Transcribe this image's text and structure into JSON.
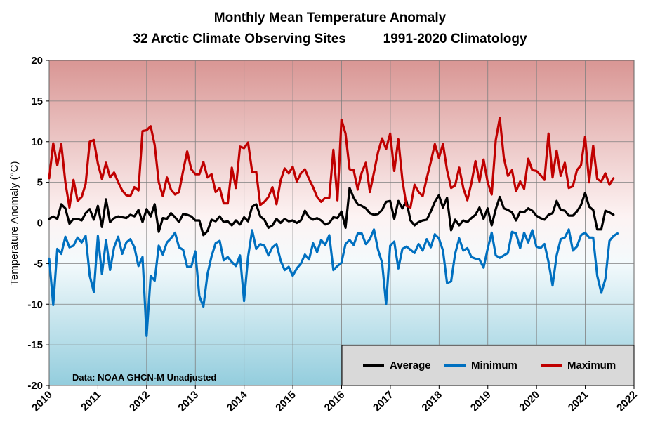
{
  "chart_data": {
    "type": "line",
    "title": "Monthly Mean Temperature Anomaly",
    "subtitle_left": "32 Arctic Climate Observing Sites",
    "subtitle_right": "1991-2020 Climatology",
    "ylabel": "Temperature Anomaly (°C)",
    "xlabel": "",
    "xlim": [
      2010,
      2022
    ],
    "ylim": [
      -20,
      20
    ],
    "x_ticks": [
      "2010",
      "2011",
      "2012",
      "2013",
      "2014",
      "2015",
      "2016",
      "2017",
      "2018",
      "2019",
      "2020",
      "2021",
      "2022"
    ],
    "y_ticks": [
      "20",
      "15",
      "10",
      "5",
      "0",
      "-5",
      "-10",
      "-15",
      "-20"
    ],
    "grid": true,
    "legend_position": "bottom-right",
    "annotation": "Data: NOAA GHCN-M Unadjusted",
    "x_start": 2010.0,
    "x_step": 0.0833,
    "series": [
      {
        "name": "Average",
        "color": "#000000",
        "values": [
          0.5,
          0.8,
          0.5,
          2.3,
          1.8,
          -0.1,
          0.5,
          0.5,
          0.3,
          1.2,
          1.7,
          0.4,
          2.1,
          -0.5,
          2.9,
          0.1,
          0.6,
          0.8,
          0.7,
          0.6,
          1.0,
          0.8,
          1.6,
          0.1,
          1.7,
          0.8,
          2.3,
          -1.1,
          0.6,
          0.5,
          1.2,
          0.7,
          0.1,
          1.1,
          1.0,
          0.8,
          0.3,
          0.3,
          -1.5,
          -1.0,
          0.4,
          0.2,
          0.8,
          0.1,
          0.2,
          -0.3,
          0.3,
          -0.2,
          0.7,
          0.2,
          2.0,
          2.3,
          0.8,
          0.4,
          -0.6,
          -0.3,
          0.5,
          0.0,
          0.5,
          0.2,
          0.3,
          0.0,
          0.3,
          1.5,
          0.7,
          0.4,
          0.6,
          0.3,
          -0.2,
          0.0,
          0.7,
          0.6,
          1.4,
          -0.6,
          4.3,
          3.1,
          2.3,
          2.1,
          1.8,
          1.2,
          1.0,
          1.1,
          1.6,
          2.6,
          2.7,
          0.5,
          2.7,
          1.8,
          2.7,
          0.3,
          -0.3,
          0.1,
          0.3,
          0.4,
          1.4,
          2.6,
          3.4,
          1.9,
          3.1,
          -0.9,
          0.4,
          -0.3,
          0.3,
          0.1,
          0.6,
          1.0,
          1.9,
          0.5,
          1.8,
          -0.3,
          1.7,
          3.2,
          1.8,
          1.6,
          1.3,
          0.3,
          1.4,
          1.3,
          1.8,
          1.5,
          0.9,
          0.6,
          0.4,
          1.0,
          1.2,
          2.7,
          1.6,
          1.5,
          0.9,
          0.9,
          1.4,
          2.2,
          3.7,
          2.0,
          1.6,
          -0.8,
          -0.8,
          1.5,
          1.3,
          1.0
        ]
      },
      {
        "name": "Minimum",
        "color": "#0070C0",
        "values": [
          -4.4,
          -10.1,
          -3.2,
          -3.8,
          -1.7,
          -3.0,
          -2.8,
          -1.8,
          -2.4,
          -1.6,
          -6.5,
          -8.5,
          -1.6,
          -6.3,
          -2.1,
          -5.8,
          -3.0,
          -1.7,
          -3.8,
          -2.4,
          -2.0,
          -3.0,
          -5.3,
          -4.2,
          -13.9,
          -6.5,
          -7.1,
          -2.8,
          -3.9,
          -2.4,
          -1.9,
          -1.2,
          -3.0,
          -3.3,
          -5.4,
          -5.4,
          -3.5,
          -9.0,
          -10.3,
          -6.3,
          -4.1,
          -2.5,
          -2.2,
          -4.6,
          -4.2,
          -4.8,
          -5.3,
          -4.0,
          -9.6,
          -4.2,
          -0.9,
          -3.2,
          -2.6,
          -2.8,
          -4.0,
          -3.0,
          -2.6,
          -4.6,
          -5.8,
          -5.4,
          -6.5,
          -5.6,
          -5.0,
          -3.9,
          -4.5,
          -2.5,
          -3.6,
          -2.1,
          -2.7,
          -1.5,
          -5.8,
          -5.3,
          -4.9,
          -2.6,
          -2.1,
          -2.7,
          -1.3,
          -1.3,
          -2.6,
          -2.0,
          -0.8,
          -3.3,
          -4.9,
          -10.0,
          -2.8,
          -2.3,
          -5.6,
          -3.2,
          -2.9,
          -3.3,
          -3.7,
          -2.6,
          -3.4,
          -2.0,
          -3.0,
          -1.4,
          -1.9,
          -3.4,
          -7.4,
          -7.2,
          -3.8,
          -1.9,
          -3.4,
          -3.1,
          -4.2,
          -4.4,
          -4.5,
          -5.5,
          -3.2,
          -1.2,
          -4.0,
          -4.3,
          -4.0,
          -3.7,
          -1.1,
          -1.3,
          -3.1,
          -1.2,
          -2.4,
          -0.9,
          -2.9,
          -3.1,
          -2.6,
          -4.8,
          -7.7,
          -4.0,
          -2.0,
          -1.8,
          -0.8,
          -3.4,
          -2.9,
          -1.5,
          -1.2,
          -1.8,
          -1.8,
          -6.5,
          -8.6,
          -6.9,
          -2.2,
          -1.6,
          -1.3
        ]
      },
      {
        "name": "Maximum",
        "color": "#C00000",
        "values": [
          5.5,
          9.8,
          7.1,
          9.7,
          5.0,
          1.9,
          5.3,
          2.7,
          3.2,
          4.8,
          10.0,
          10.2,
          7.3,
          5.4,
          7.4,
          5.6,
          6.2,
          5.0,
          4.0,
          3.4,
          3.3,
          4.4,
          4.0,
          11.3,
          11.4,
          11.9,
          9.6,
          5.0,
          3.3,
          5.6,
          4.1,
          3.5,
          3.8,
          6.4,
          8.8,
          6.6,
          6.0,
          6.0,
          7.5,
          5.6,
          6.0,
          3.8,
          4.3,
          2.4,
          2.4,
          6.8,
          4.3,
          9.4,
          9.2,
          9.9,
          6.3,
          6.3,
          2.2,
          2.6,
          3.2,
          4.4,
          2.3,
          5.2,
          6.7,
          6.1,
          6.9,
          5.1,
          6.1,
          6.6,
          5.4,
          4.4,
          3.2,
          2.6,
          3.1,
          3.1,
          9.0,
          2.8,
          12.7,
          11.0,
          6.6,
          6.5,
          4.1,
          6.2,
          7.4,
          3.8,
          6.2,
          8.7,
          10.4,
          9.1,
          11.0,
          6.4,
          10.3,
          5.3,
          2.1,
          1.9,
          4.7,
          3.8,
          3.3,
          5.5,
          7.5,
          9.7,
          8.0,
          9.7,
          6.5,
          4.3,
          4.6,
          6.8,
          4.3,
          2.8,
          4.9,
          7.6,
          5.1,
          7.8,
          5.0,
          3.5,
          10.2,
          12.9,
          8.0,
          5.8,
          6.5,
          3.9,
          5.1,
          4.2,
          7.9,
          6.5,
          6.4,
          5.9,
          5.3,
          11.0,
          5.6,
          8.9,
          5.8,
          7.4,
          4.3,
          4.5,
          6.5,
          7.1,
          10.6,
          5.0,
          9.5,
          5.4,
          5.1,
          6.1,
          4.7,
          5.5
        ]
      }
    ]
  }
}
